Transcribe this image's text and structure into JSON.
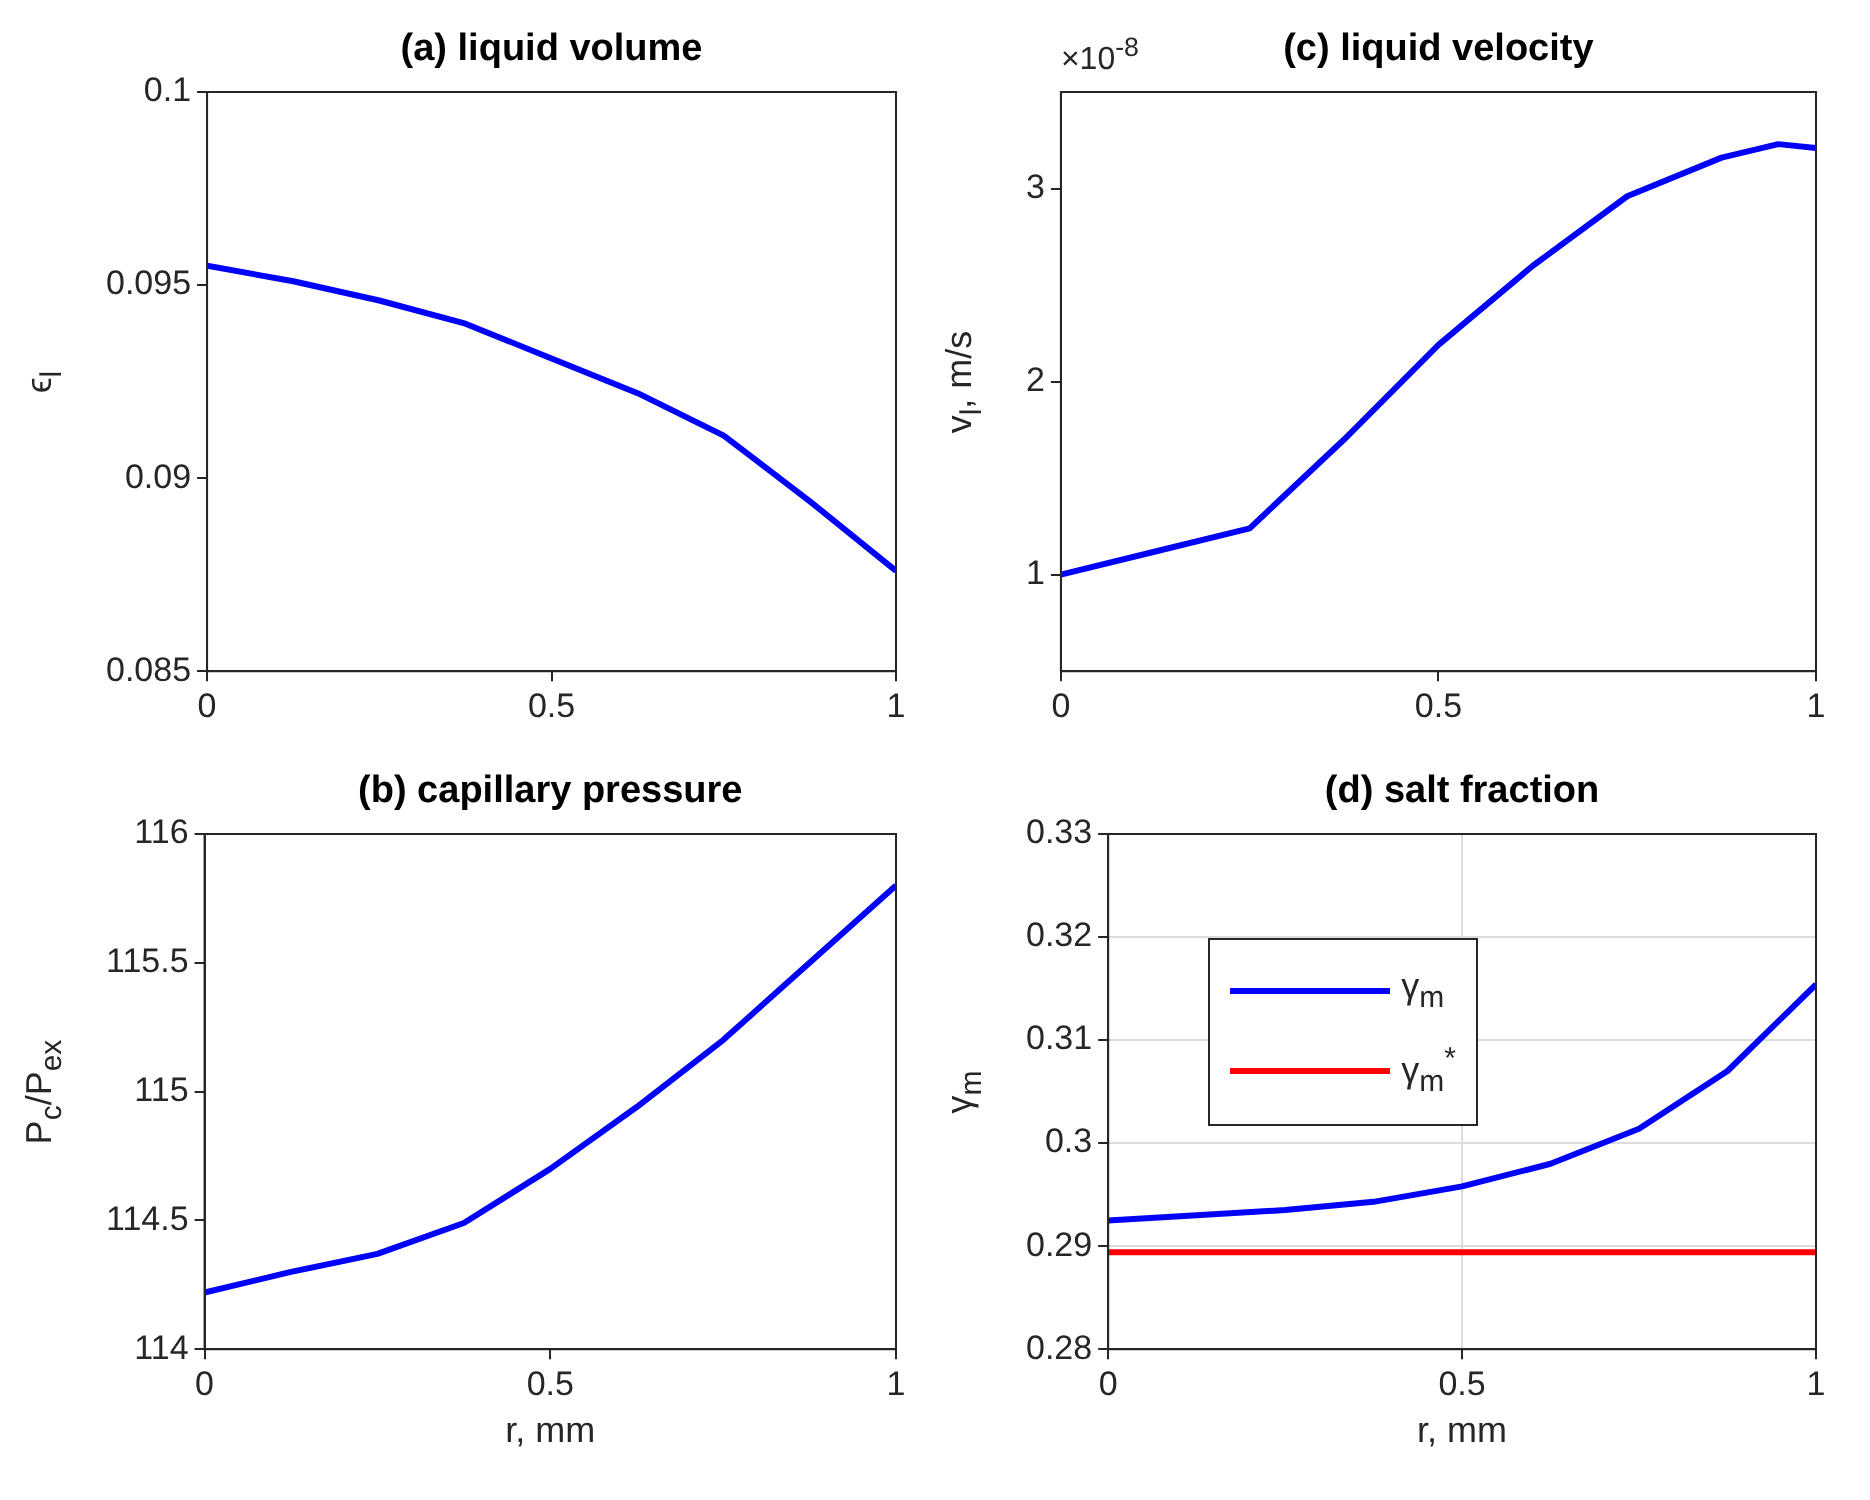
{
  "chart_data": [
    {
      "type": "line",
      "title": "(a) liquid volume",
      "ylabel": "ϵ$_{l}$",
      "x": [
        0,
        0.125,
        0.25,
        0.375,
        0.5,
        0.625,
        0.75,
        0.875,
        1
      ],
      "xlim": [
        0,
        1
      ],
      "xticks": [
        0,
        0.5,
        1
      ],
      "ylim": [
        0.085,
        0.1
      ],
      "yticks": [
        0.085,
        0.09,
        0.095,
        0.1
      ],
      "grid": false,
      "legend": false,
      "series": [
        {
          "color": "#0000ff",
          "values": [
            0.0955,
            0.0951,
            0.0946,
            0.094,
            0.0931,
            0.0922,
            0.0911,
            0.0894,
            0.0876
          ]
        }
      ]
    },
    {
      "type": "line",
      "title": "(c) liquid velocity",
      "ylabel": "v$_{l}$, m/s",
      "annotations": [
        "×10$^{-8}$"
      ],
      "x": [
        0,
        0.125,
        0.25,
        0.375,
        0.5,
        0.625,
        0.75,
        0.875,
        0.95,
        1
      ],
      "xlim": [
        0,
        1
      ],
      "xticks": [
        0,
        0.5,
        1
      ],
      "ylim": [
        0.5,
        3.5
      ],
      "yticks": [
        1,
        2,
        3
      ],
      "grid": false,
      "legend": false,
      "series": [
        {
          "color": "#0000ff",
          "values": [
            1.0,
            1.12,
            1.24,
            1.7,
            2.19,
            2.6,
            2.96,
            3.16,
            3.23,
            3.21
          ]
        }
      ]
    },
    {
      "type": "line",
      "title": "(b) capillary pressure",
      "xlabel": "r, mm",
      "ylabel": "P$_{c}$/P$_{ex}$",
      "x": [
        0,
        0.125,
        0.25,
        0.375,
        0.5,
        0.625,
        0.75,
        0.875,
        1
      ],
      "xlim": [
        0,
        1
      ],
      "xticks": [
        0,
        0.5,
        1
      ],
      "ylim": [
        114,
        116
      ],
      "yticks": [
        114,
        114.5,
        115,
        115.5,
        116
      ],
      "grid": false,
      "legend": false,
      "series": [
        {
          "color": "#0000ff",
          "values": [
            114.22,
            114.3,
            114.37,
            114.49,
            114.7,
            114.94,
            115.2,
            115.5,
            115.8
          ]
        }
      ]
    },
    {
      "type": "line",
      "title": "(d) salt fraction",
      "xlabel": "r, mm",
      "ylabel": "γ$_{m}$",
      "x": [
        0,
        0.125,
        0.25,
        0.375,
        0.5,
        0.625,
        0.75,
        0.875,
        1
      ],
      "xlim": [
        0,
        1
      ],
      "xticks": [
        0,
        0.5,
        1
      ],
      "ylim": [
        0.28,
        0.33
      ],
      "yticks": [
        0.28,
        0.29,
        0.3,
        0.31,
        0.32,
        0.33
      ],
      "grid": true,
      "legend": "top left",
      "series": [
        {
          "name": "γ$_{m}$",
          "color": "#0000ff",
          "values": [
            0.2925,
            0.293,
            0.2935,
            0.2943,
            0.2958,
            0.298,
            0.3014,
            0.307,
            0.3154
          ]
        },
        {
          "name": "γ$_{m}$$^{*}$",
          "color": "#ff0000",
          "values": [
            0.2894,
            0.2894,
            0.2894,
            0.2894,
            0.2894,
            0.2894,
            0.2894,
            0.2894,
            0.2894
          ]
        }
      ]
    }
  ]
}
